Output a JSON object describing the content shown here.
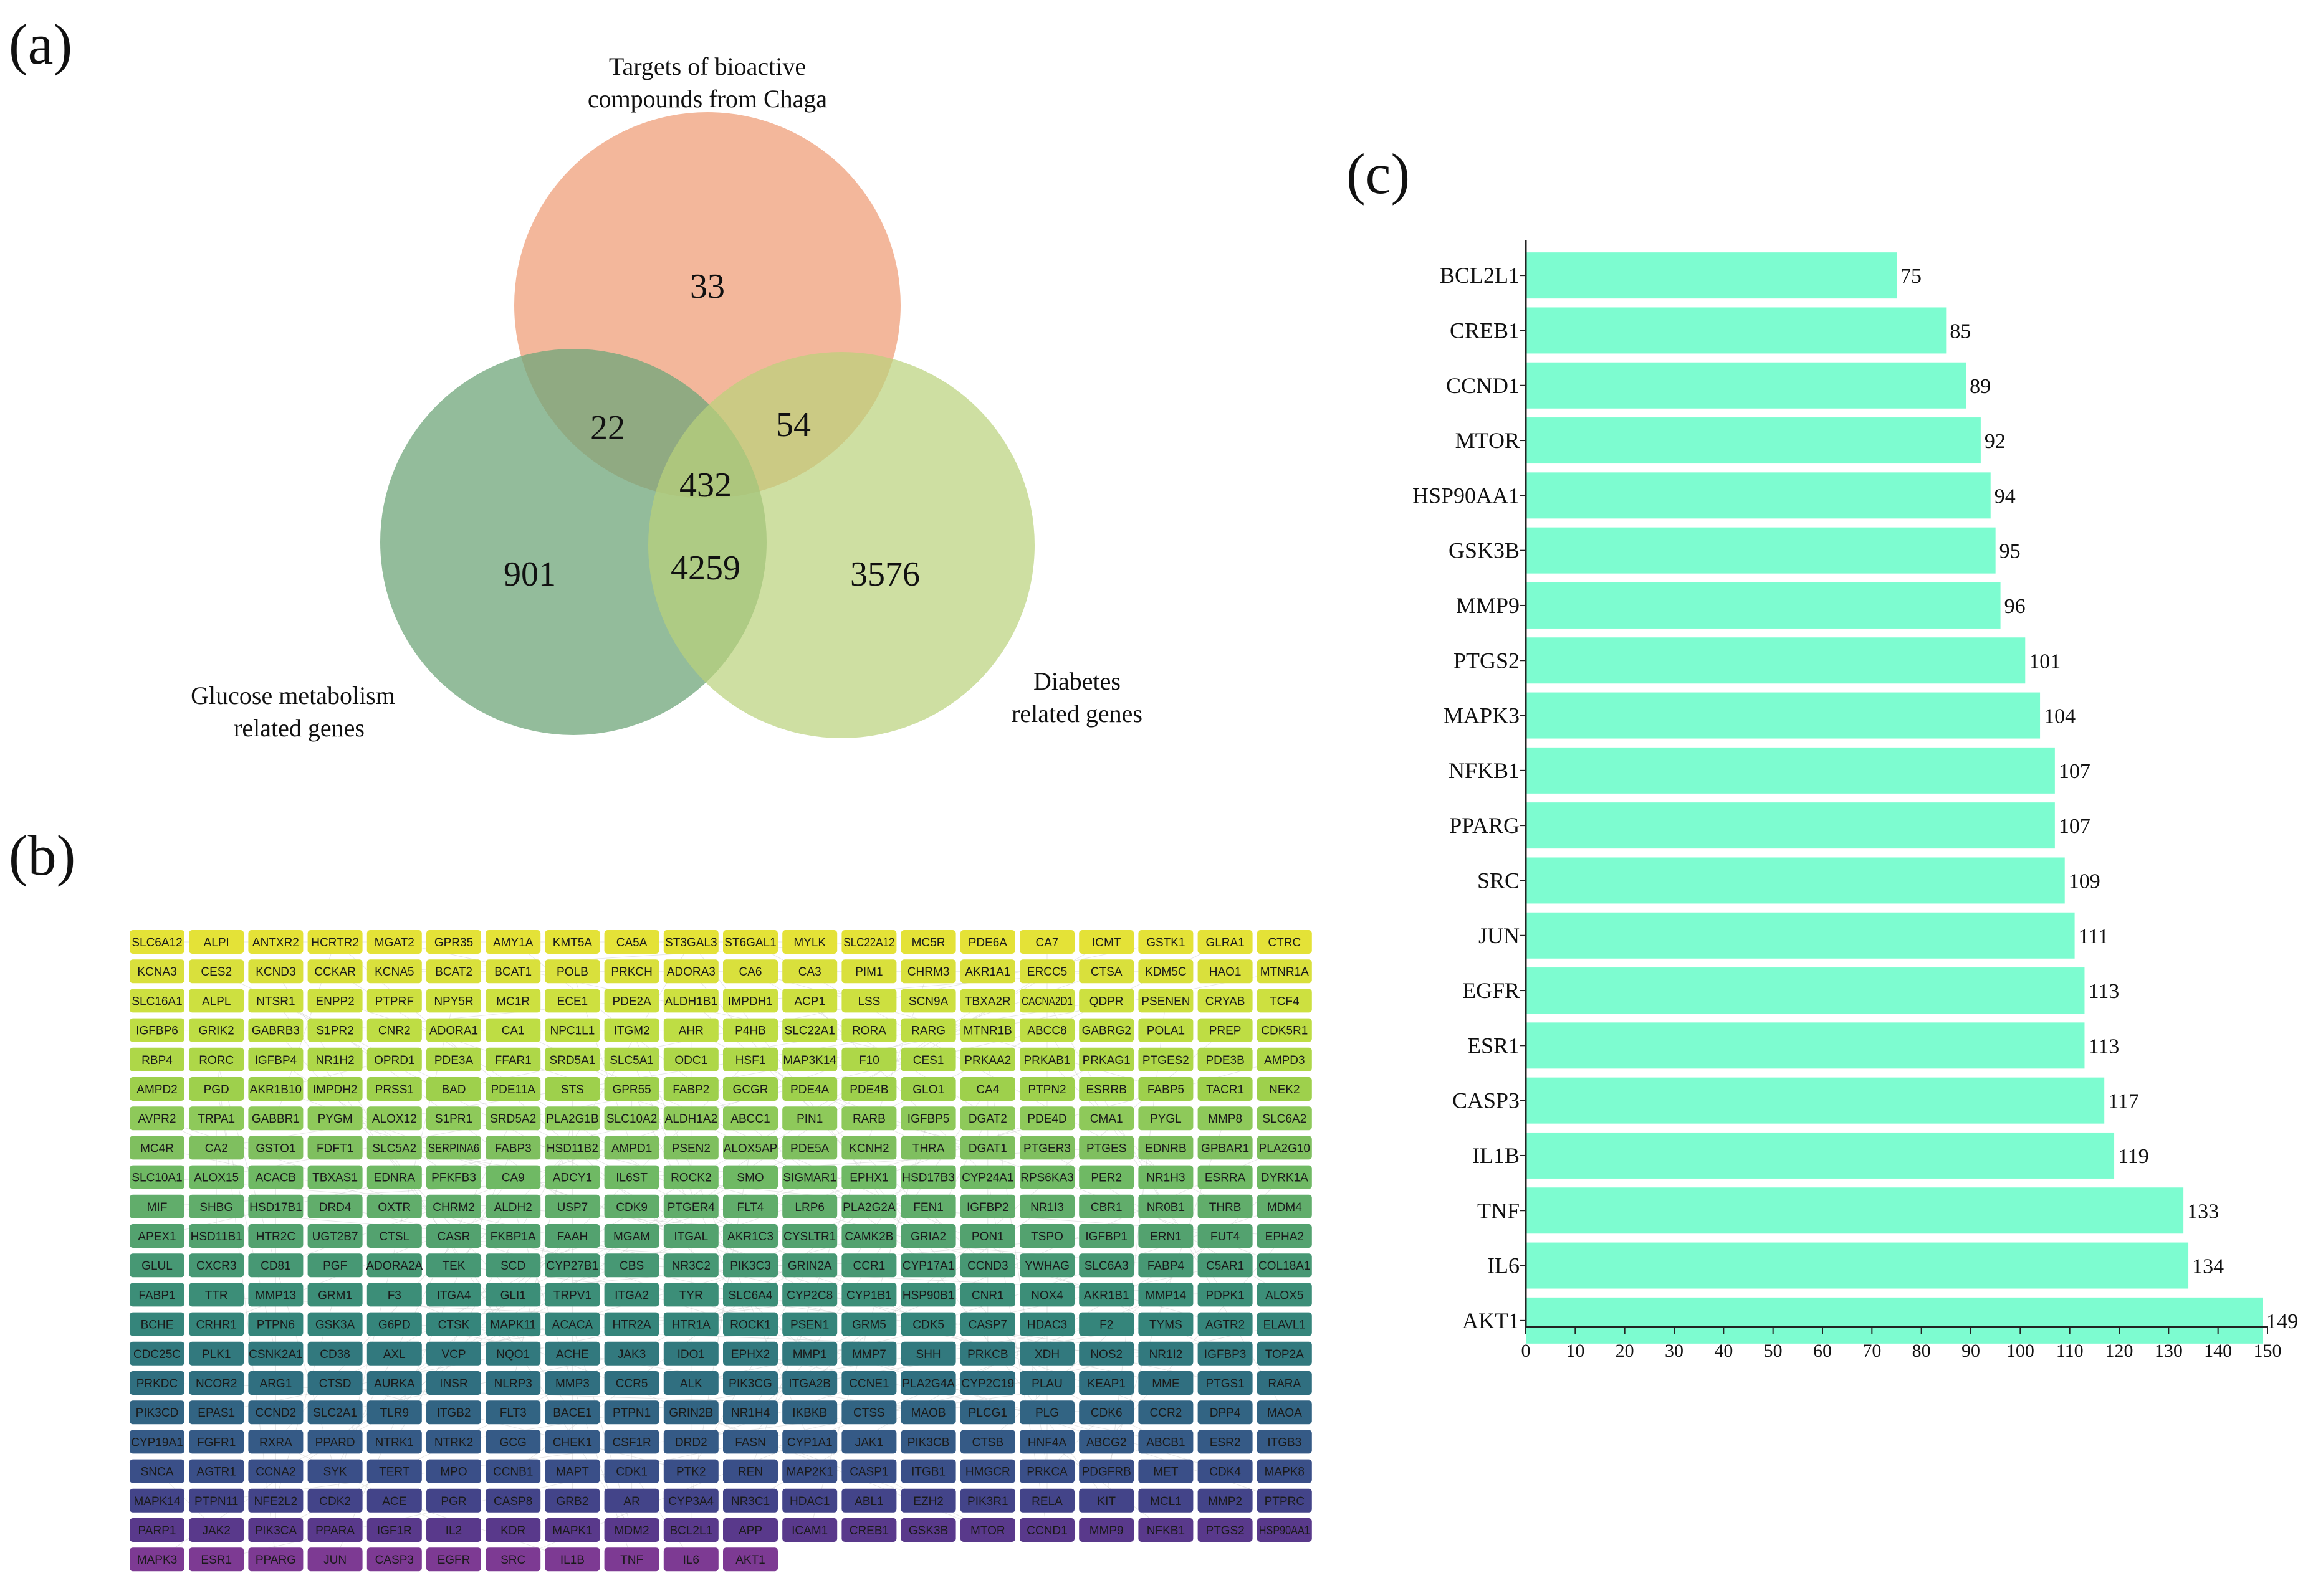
{
  "panels": {
    "a": "(a)",
    "b": "(b)",
    "c": "(c)"
  },
  "venn": {
    "sets": {
      "chaga": {
        "label_line1": "Targets of bioactive",
        "label_line2": "compounds from Chaga",
        "color": "#f0a582"
      },
      "glucose": {
        "label_line1": "Glucose metabolism",
        "label_line2": "related genes",
        "color": "#6fa57a"
      },
      "diabetes": {
        "label_line1": "Diabetes",
        "label_line2": "related genes",
        "color": "#b9d27a"
      }
    },
    "counts": {
      "chaga_only": "33",
      "glucose_only": "901",
      "diabetes_only": "3576",
      "chaga_glucose": "22",
      "chaga_diabetes": "54",
      "glucose_diabetes": "4259",
      "all": "432"
    }
  },
  "network": {
    "rows": [
      [
        "SLC6A12",
        "ALPI",
        "ANTXR2",
        "HCRTR2",
        "MGAT2",
        "GPR35",
        "AMY1A",
        "KMT5A",
        "CA5A",
        "ST3GAL3",
        "ST6GAL1",
        "MYLK",
        "SLC22A12",
        "MC5R",
        "PDE6A",
        "CA7",
        "ICMT",
        "GSTK1",
        "GLRA1",
        "CTRC"
      ],
      [
        "KCNA3",
        "CES2",
        "KCND3",
        "CCKAR",
        "KCNA5",
        "BCAT2",
        "BCAT1",
        "POLB",
        "PRKCH",
        "ADORA3",
        "CA6",
        "CA3",
        "PIM1",
        "CHRM3",
        "AKR1A1",
        "ERCC5",
        "CTSA",
        "KDM5C",
        "HAO1",
        "MTNR1A"
      ],
      [
        "SLC16A1",
        "ALPL",
        "NTSR1",
        "ENPP2",
        "PTPRF",
        "NPY5R",
        "MC1R",
        "ECE1",
        "PDE2A",
        "ALDH1B1",
        "IMPDH1",
        "ACP1",
        "LSS",
        "SCN9A",
        "TBXA2R",
        "CACNA2D1",
        "QDPR",
        "PSENEN",
        "CRYAB",
        "TCF4"
      ],
      [
        "IGFBP6",
        "GRIK2",
        "GABRB3",
        "S1PR2",
        "CNR2",
        "ADORA1",
        "CA1",
        "NPC1L1",
        "ITGM2",
        "AHR",
        "P4HB",
        "SLC22A1",
        "RORA",
        "RARG",
        "MTNR1B",
        "ABCC8",
        "GABRG2",
        "POLA1",
        "PREP",
        "CDK5R1"
      ],
      [
        "RBP4",
        "RORC",
        "IGFBP4",
        "NR1H2",
        "OPRD1",
        "PDE3A",
        "FFAR1",
        "SRD5A1",
        "SLC5A1",
        "ODC1",
        "HSF1",
        "MAP3K14",
        "F10",
        "CES1",
        "PRKAA2",
        "PRKAB1",
        "PRKAG1",
        "PTGES2",
        "PDE3B",
        "AMPD3"
      ],
      [
        "AMPD2",
        "PGD",
        "AKR1B10",
        "IMPDH2",
        "PRSS1",
        "BAD",
        "PDE11A",
        "STS",
        "GPR55",
        "FABP2",
        "GCGR",
        "PDE4A",
        "PDE4B",
        "GLO1",
        "CA4",
        "PTPN2",
        "ESRRB",
        "FABP5",
        "TACR1",
        "NEK2"
      ],
      [
        "AVPR2",
        "TRPA1",
        "GABBR1",
        "PYGM",
        "ALOX12",
        "S1PR1",
        "SRD5A2",
        "PLA2G1B",
        "SLC10A2",
        "ALDH1A2",
        "ABCC1",
        "PIN1",
        "RARB",
        "IGFBP5",
        "DGAT2",
        "PDE4D",
        "CMA1",
        "PYGL",
        "MMP8",
        "SLC6A2"
      ],
      [
        "MC4R",
        "CA2",
        "GSTO1",
        "FDFT1",
        "SLC5A2",
        "SERPINA6",
        "FABP3",
        "HSD11B2",
        "AMPD1",
        "PSEN2",
        "ALOX5AP",
        "PDE5A",
        "KCNH2",
        "THRA",
        "DGAT1",
        "PTGER3",
        "PTGES",
        "EDNRB",
        "GPBAR1",
        "PLA2G10"
      ],
      [
        "SLC10A1",
        "ALOX15",
        "ACACB",
        "TBXAS1",
        "EDNRA",
        "PFKFB3",
        "CA9",
        "ADCY1",
        "IL6ST",
        "ROCK2",
        "SMO",
        "SIGMAR1",
        "EPHX1",
        "HSD17B3",
        "CYP24A1",
        "RPS6KA3",
        "PER2",
        "NR1H3",
        "ESRRA",
        "DYRK1A"
      ],
      [
        "MIF",
        "SHBG",
        "HSD17B1",
        "DRD4",
        "OXTR",
        "CHRM2",
        "ALDH2",
        "USP7",
        "CDK9",
        "PTGER4",
        "FLT4",
        "LRP6",
        "PLA2G2A",
        "FEN1",
        "IGFBP2",
        "NR1I3",
        "CBR1",
        "NR0B1",
        "THRB",
        "MDM4"
      ],
      [
        "APEX1",
        "HSD11B1",
        "HTR2C",
        "UGT2B7",
        "CTSL",
        "CASR",
        "FKBP1A",
        "FAAH",
        "MGAM",
        "ITGAL",
        "AKR1C3",
        "CYSLTR1",
        "CAMK2B",
        "GRIA2",
        "PON1",
        "TSPO",
        "IGFBP1",
        "ERN1",
        "FUT4",
        "EPHA2"
      ],
      [
        "GLUL",
        "CXCR3",
        "CD81",
        "PGF",
        "ADORA2A",
        "TEK",
        "SCD",
        "CYP27B1",
        "CBS",
        "NR3C2",
        "PIK3C3",
        "GRIN2A",
        "CCR1",
        "CYP17A1",
        "CCND3",
        "YWHAG",
        "SLC6A3",
        "FABP4",
        "C5AR1",
        "COL18A1"
      ],
      [
        "FABP1",
        "TTR",
        "MMP13",
        "GRM1",
        "F3",
        "ITGA4",
        "GLI1",
        "TRPV1",
        "ITGA2",
        "TYR",
        "SLC6A4",
        "CYP2C8",
        "CYP1B1",
        "HSP90B1",
        "CNR1",
        "NOX4",
        "AKR1B1",
        "MMP14",
        "PDPK1",
        "ALOX5"
      ],
      [
        "BCHE",
        "CRHR1",
        "PTPN6",
        "GSK3A",
        "G6PD",
        "CTSK",
        "MAPK11",
        "ACACA",
        "HTR2A",
        "HTR1A",
        "ROCK1",
        "PSEN1",
        "GRM5",
        "CDK5",
        "CASP7",
        "HDAC3",
        "F2",
        "TYMS",
        "AGTR2",
        "ELAVL1"
      ],
      [
        "CDC25C",
        "PLK1",
        "CSNK2A1",
        "CD38",
        "AXL",
        "VCP",
        "NQO1",
        "ACHE",
        "JAK3",
        "IDO1",
        "EPHX2",
        "MMP1",
        "MMP7",
        "SHH",
        "PRKCB",
        "XDH",
        "NOS2",
        "NR1I2",
        "IGFBP3",
        "TOP2A"
      ],
      [
        "PRKDC",
        "NCOR2",
        "ARG1",
        "CTSD",
        "AURKA",
        "INSR",
        "NLRP3",
        "MMP3",
        "CCR5",
        "ALK",
        "PIK3CG",
        "ITGA2B",
        "CCNE1",
        "PLA2G4A",
        "CYP2C19",
        "PLAU",
        "KEAP1",
        "MME",
        "PTGS1",
        "RARA"
      ],
      [
        "PIK3CD",
        "EPAS1",
        "CCND2",
        "SLC2A1",
        "TLR9",
        "ITGB2",
        "FLT3",
        "BACE1",
        "PTPN1",
        "GRIN2B",
        "NR1H4",
        "IKBKB",
        "CTSS",
        "MAOB",
        "PLCG1",
        "PLG",
        "CDK6",
        "CCR2",
        "DPP4",
        "MAOA"
      ],
      [
        "CYP19A1",
        "FGFR1",
        "RXRA",
        "PPARD",
        "NTRK1",
        "NTRK2",
        "GCG",
        "CHEK1",
        "CSF1R",
        "DRD2",
        "FASN",
        "CYP1A1",
        "JAK1",
        "PIK3CB",
        "CTSB",
        "HNF4A",
        "ABCG2",
        "ABCB1",
        "ESR2",
        "ITGB3"
      ],
      [
        "SNCA",
        "AGTR1",
        "CCNA2",
        "SYK",
        "TERT",
        "MPO",
        "CCNB1",
        "MAPT",
        "CDK1",
        "PTK2",
        "REN",
        "MAP2K1",
        "CASP1",
        "ITGB1",
        "HMGCR",
        "PRKCA",
        "PDGFRB",
        "MET",
        "CDK4",
        "MAPK8"
      ],
      [
        "MAPK14",
        "PTPN11",
        "NFE2L2",
        "CDK2",
        "ACE",
        "PGR",
        "CASP8",
        "GRB2",
        "AR",
        "CYP3A4",
        "NR3C1",
        "HDAC1",
        "ABL1",
        "EZH2",
        "PIK3R1",
        "RELA",
        "KIT",
        "MCL1",
        "MMP2",
        "PTPRC"
      ],
      [
        "PARP1",
        "JAK2",
        "PIK3CA",
        "PPARA",
        "IGF1R",
        "IL2",
        "KDR",
        "MAPK1",
        "MDM2",
        "BCL2L1",
        "APP",
        "ICAM1",
        "CREB1",
        "GSK3B",
        "MTOR",
        "CCND1",
        "MMP9",
        "NFKB1",
        "PTGS2",
        "HSP90AA1"
      ],
      [
        "MAPK3",
        "ESR1",
        "PPARG",
        "JUN",
        "CASP3",
        "EGFR",
        "SRC",
        "IL1B",
        "TNF",
        "IL6",
        "AKT1"
      ]
    ],
    "colors": [
      "#e4e237",
      "#d9e03c",
      "#cde040",
      "#bedd44",
      "#aed748",
      "#9ed04c",
      "#8ec95a",
      "#7fbf5f",
      "#6fb964",
      "#61ad6b",
      "#53a26f",
      "#479874",
      "#3c8e78",
      "#35857b",
      "#32797e",
      "#306f80",
      "#326483",
      "#355a86",
      "#3a4f88",
      "#434489",
      "#59398b",
      "#7d3a93"
    ]
  },
  "chart_data": {
    "type": "bar",
    "orientation": "horizontal",
    "categories": [
      "BCL2L1",
      "CREB1",
      "CCND1",
      "MTOR",
      "HSP90AA1",
      "GSK3B",
      "MMP9",
      "PTGS2",
      "MAPK3",
      "NFKB1",
      "PPARG",
      "SRC",
      "JUN",
      "EGFR",
      "ESR1",
      "CASP3",
      "IL1B",
      "TNF",
      "IL6",
      "AKT1"
    ],
    "values": [
      75,
      85,
      89,
      92,
      94,
      95,
      96,
      101,
      104,
      107,
      107,
      109,
      111,
      113,
      113,
      117,
      119,
      133,
      134,
      149
    ],
    "xlim": [
      0,
      150
    ],
    "xticks": [
      "0",
      "10",
      "20",
      "30",
      "40",
      "50",
      "60",
      "70",
      "80",
      "90",
      "100",
      "110",
      "120",
      "130",
      "140",
      "150"
    ],
    "bar_color": "#7dfcd0",
    "grid": false,
    "legend": false
  }
}
